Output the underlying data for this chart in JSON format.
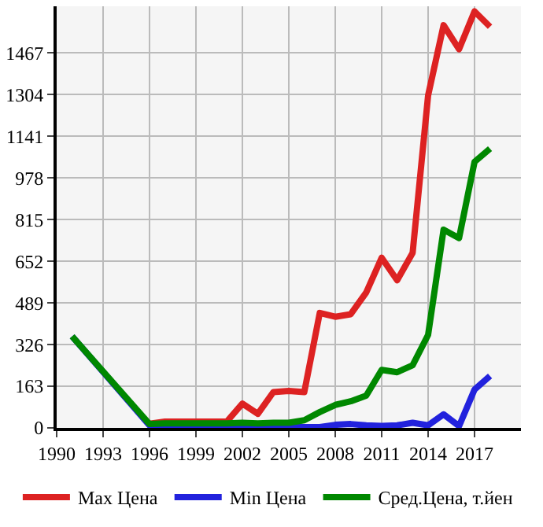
{
  "chart_data": {
    "type": "line",
    "x": [
      1991,
      1996,
      1997,
      1998,
      1999,
      2000,
      2001,
      2002,
      2003,
      2004,
      2005,
      2006,
      2007,
      2008,
      2009,
      2010,
      2011,
      2012,
      2013,
      2014,
      2015,
      2016,
      2017,
      2018
    ],
    "series": [
      {
        "name": "Max Цена",
        "color": "#dd2222",
        "values": [
          null,
          16,
          25,
          25,
          25,
          25,
          25,
          95,
          55,
          140,
          145,
          140,
          450,
          435,
          445,
          530,
          666,
          578,
          685,
          1301,
          1576,
          1482,
          1630,
          1570
        ]
      },
      {
        "name": "Min Цена",
        "color": "#2222dd",
        "values": [
          358,
          10,
          3,
          3,
          3,
          3,
          3,
          3,
          3,
          3,
          3,
          3,
          3,
          12,
          15,
          10,
          8,
          10,
          20,
          10,
          53,
          7,
          150,
          203
        ]
      },
      {
        "name": "Сред.Цена, т.йен",
        "color": "#008800",
        "values": [
          358,
          15,
          18,
          18,
          18,
          18,
          18,
          20,
          18,
          20,
          20,
          30,
          62,
          90,
          104,
          126,
          227,
          218,
          245,
          364,
          776,
          743,
          1041,
          1093
        ]
      }
    ],
    "xlim": [
      1990,
      2020
    ],
    "xticks": [
      1990,
      1993,
      1996,
      1999,
      2002,
      2005,
      2008,
      2011,
      2014,
      2017
    ],
    "ylim": [
      0,
      1650
    ],
    "yticks": [
      0,
      163,
      326,
      489,
      652,
      815,
      978,
      1141,
      1304,
      1467
    ],
    "grid": true,
    "legend": "bottom",
    "marker": "none",
    "line_style": "solid"
  }
}
